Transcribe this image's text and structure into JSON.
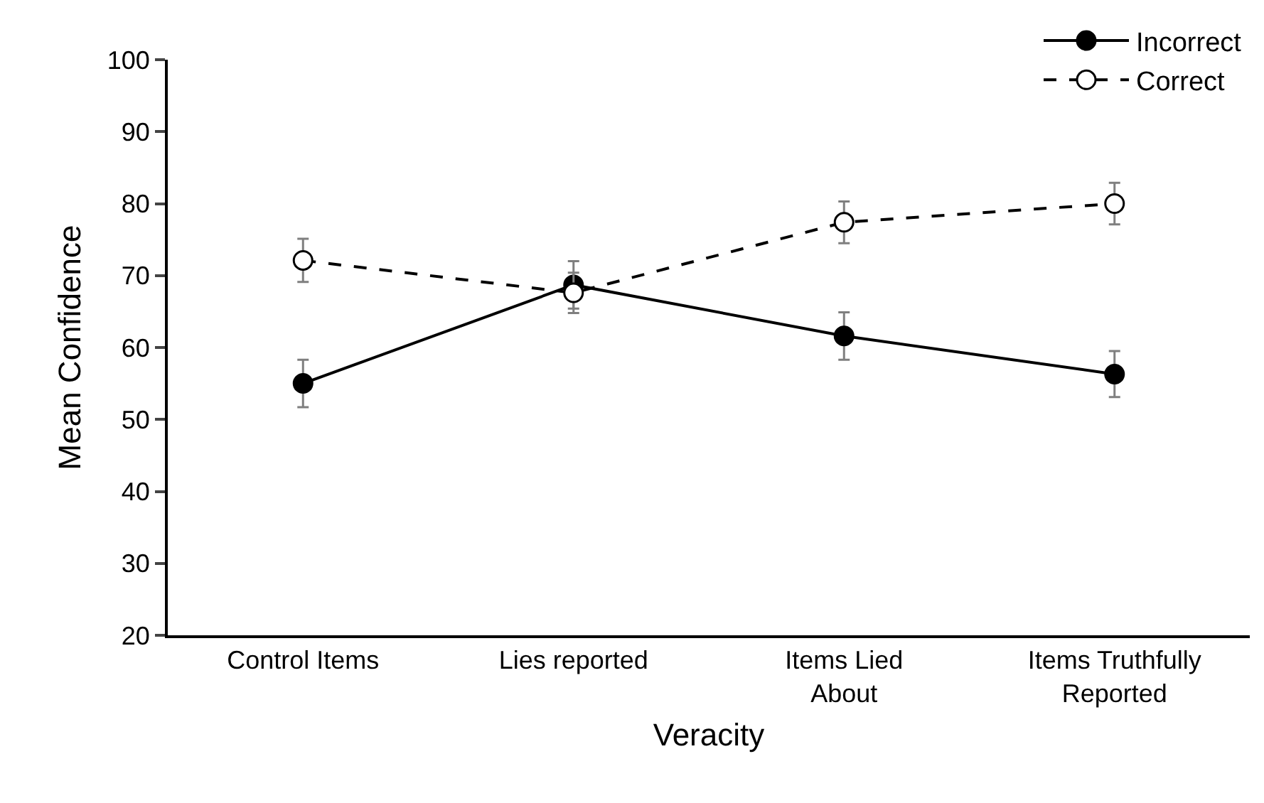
{
  "chart_data": {
    "type": "line",
    "xlabel": "Veracity",
    "ylabel": "Mean Confidence",
    "categories": [
      "Control Items",
      "Lies reported",
      "Items Lied About",
      "Items Truthfully Reported"
    ],
    "series": [
      {
        "name": "Incorrect",
        "color": "#000000",
        "values": [
          55,
          68.7,
          61.6,
          56.3
        ],
        "errors": [
          3.3,
          3.3,
          3.3,
          3.2
        ],
        "marker": "circle",
        "line_style": "solid"
      },
      {
        "name": "Correct",
        "color": "#000000",
        "values": [
          72.1,
          67.6,
          77.4,
          80
        ],
        "errors": [
          3,
          2.8,
          2.9,
          2.9
        ],
        "marker": "open circle",
        "line_style": "dashed"
      }
    ],
    "ylim": [
      20,
      100
    ],
    "yticks": [
      20,
      30,
      40,
      50,
      60,
      70,
      80,
      90,
      100
    ],
    "grid": false,
    "legend": "top right"
  }
}
